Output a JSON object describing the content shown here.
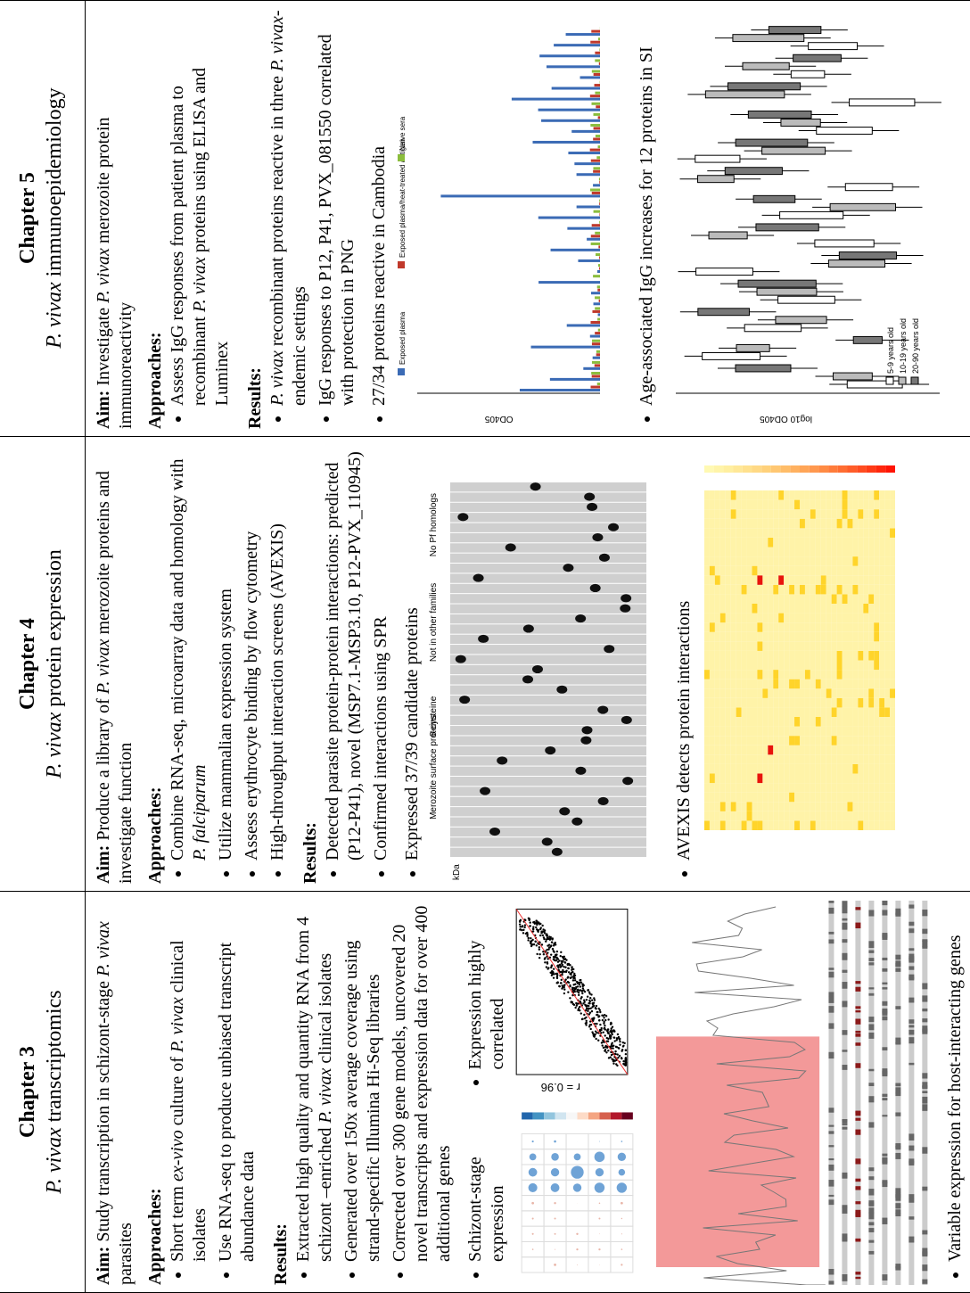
{
  "columns": [
    {
      "chapter": "Chapter 3",
      "subtitle": [
        {
          "i": "P. vivax"
        },
        " transcriptomics"
      ],
      "aim_label": "Aim:",
      "aim": [
        " Study transcription in schizont-stage ",
        {
          "i": "P. vivax"
        },
        " parasites"
      ],
      "approaches_label": "Approaches:",
      "approaches": [
        [
          "Short term ",
          {
            "i": "ex-vivo"
          },
          " culture of ",
          {
            "i": "P. vivax"
          },
          " clinical isolates"
        ],
        [
          "Use RNA-seq to produce unbiased transcript abundance data"
        ]
      ],
      "results_label": "Results:",
      "results": [
        [
          "Extracted high quality and quantity RNA from 4 schizont –enriched ",
          {
            "i": "P. vivax"
          },
          " clinical isolates"
        ],
        [
          "Generated over 150x average coverage using strand-specific Illumina Hi-Seq libraries"
        ],
        [
          "Corrected over 300 gene models, uncovered 20 novel transcripts and expression data for over 400 additional genes"
        ]
      ],
      "figures": [
        {
          "kind": "correlation",
          "caption": [
            "Schizont-stage expression"
          ],
          "labels": []
        },
        {
          "kind": "scatter",
          "caption": [
            "Expression highly correlated"
          ],
          "labels": [
            "r = 0.96"
          ]
        },
        {
          "kind": "tracks",
          "caption": [
            "Variable expression for host-interacting genes"
          ],
          "labels": []
        }
      ]
    },
    {
      "chapter": "Chapter 4",
      "subtitle": [
        {
          "i": "P. vivax"
        },
        " protein expression"
      ],
      "aim_label": "Aim:",
      "aim": [
        " Produce a library of ",
        {
          "i": "P. vivax"
        },
        " merozoite proteins and investigate function"
      ],
      "approaches_label": "Approaches:",
      "approaches": [
        [
          "Combine RNA-seq, microarray data and homology with ",
          {
            "i": "P. falciparum"
          }
        ],
        [
          "Utilize mammalian expression system"
        ],
        [
          "Assess erythrocyte binding by flow cytometry"
        ],
        [
          "High-throughput interaction screens (AVEXIS)"
        ]
      ],
      "results_label": "Results:",
      "results": [
        [
          "Detected parasite protein-protein interactions: predicted (P12-P41), novel (MSP7.1-MSP3.10, P12-PVX_110945)"
        ],
        [
          "Confirmed interactions using SPR"
        ]
      ],
      "figures": [
        {
          "kind": "gel",
          "caption": [
            "Expressed 37/39 candidate proteins"
          ],
          "labels": [
            "Merozoite surface proteins",
            "6-cysteine",
            "Not in other families",
            "No Pf homologs",
            "kDa"
          ]
        },
        {
          "kind": "heatmap",
          "caption": [
            "AVEXIS detects protein interactions"
          ],
          "labels": []
        }
      ]
    },
    {
      "chapter": "Chapter 5",
      "subtitle": [
        {
          "i": "P. vivax"
        },
        " immunoepidemiology"
      ],
      "aim_label": "Aim:",
      "aim": [
        " Investigate ",
        {
          "i": "P. vivax"
        },
        " merozoite protein immunoreactivity"
      ],
      "approaches_label": "Approaches:",
      "approaches": [
        [
          "Assess IgG responses from patient plasma to recombinant ",
          {
            "i": "P. vivax"
          },
          " proteins using ELISA and Luminex"
        ]
      ],
      "results_label": "Results:",
      "results": [
        [
          {
            "i": "P. vivax"
          },
          " recombinant proteins reactive in three ",
          {
            "i": "P. vivax"
          },
          "-endemic settings"
        ],
        [
          "IgG responses to P12, P41, PVX_081550 correlated with protection in PNG"
        ]
      ],
      "figures": [
        {
          "kind": "bars",
          "caption": [
            "27/34 proteins reactive in Cambodia"
          ],
          "labels": [
            "Exposed plasma",
            "Exposed plasma/heat-treated antigen",
            "Naive sera",
            "OD405"
          ]
        },
        {
          "kind": "boxes",
          "caption": [
            "Age-associated IgG increases for 12 proteins in SI"
          ],
          "labels": [
            "5-9 years old",
            "10-19 years old",
            "20-90 years old",
            "log10 OD405"
          ]
        }
      ]
    }
  ]
}
